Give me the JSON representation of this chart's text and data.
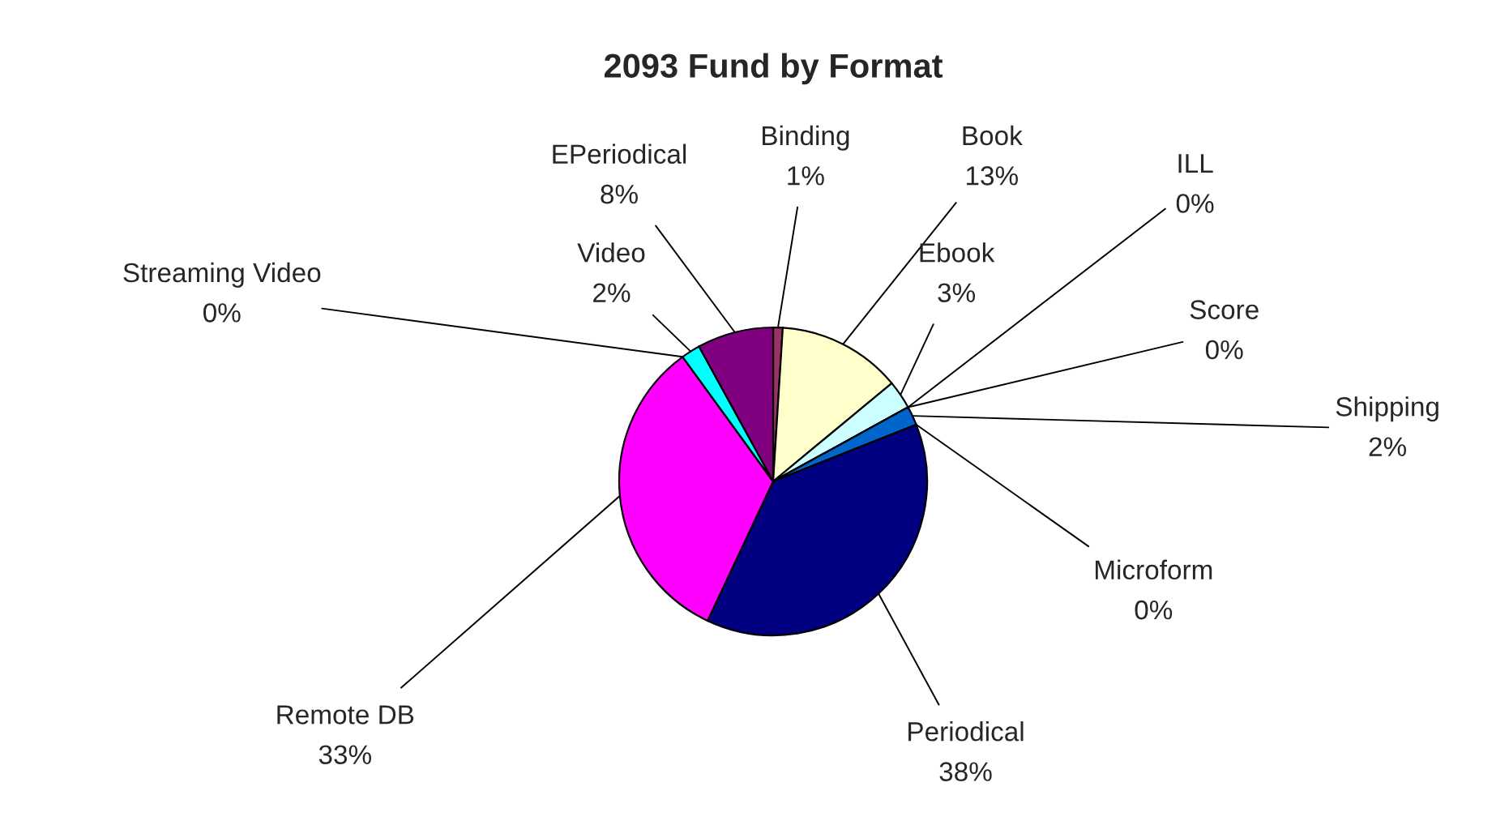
{
  "chart_data": {
    "type": "pie",
    "title": "2093 Fund by Format",
    "categories": [
      "Binding",
      "Book",
      "Ebook",
      "ILL",
      "Score",
      "Shipping",
      "Microform",
      "Periodical",
      "Remote DB",
      "Streaming Video",
      "Video",
      "EPeriodical"
    ],
    "values": [
      1,
      13,
      3,
      0,
      0,
      2,
      0,
      38,
      33,
      0,
      2,
      8
    ],
    "colors": [
      "#993366",
      "#ffffcc",
      "#ccffff",
      "#660066",
      "#ff8080",
      "#0066cc",
      "#ccccff",
      "#000080",
      "#ff00ff",
      "#ffff00",
      "#00ffff",
      "#800080"
    ],
    "value_labels": [
      "1%",
      "13%",
      "3%",
      "0%",
      "0%",
      "2%",
      "0%",
      "38%",
      "33%",
      "0%",
      "2%",
      "8%"
    ],
    "legend": false
  }
}
